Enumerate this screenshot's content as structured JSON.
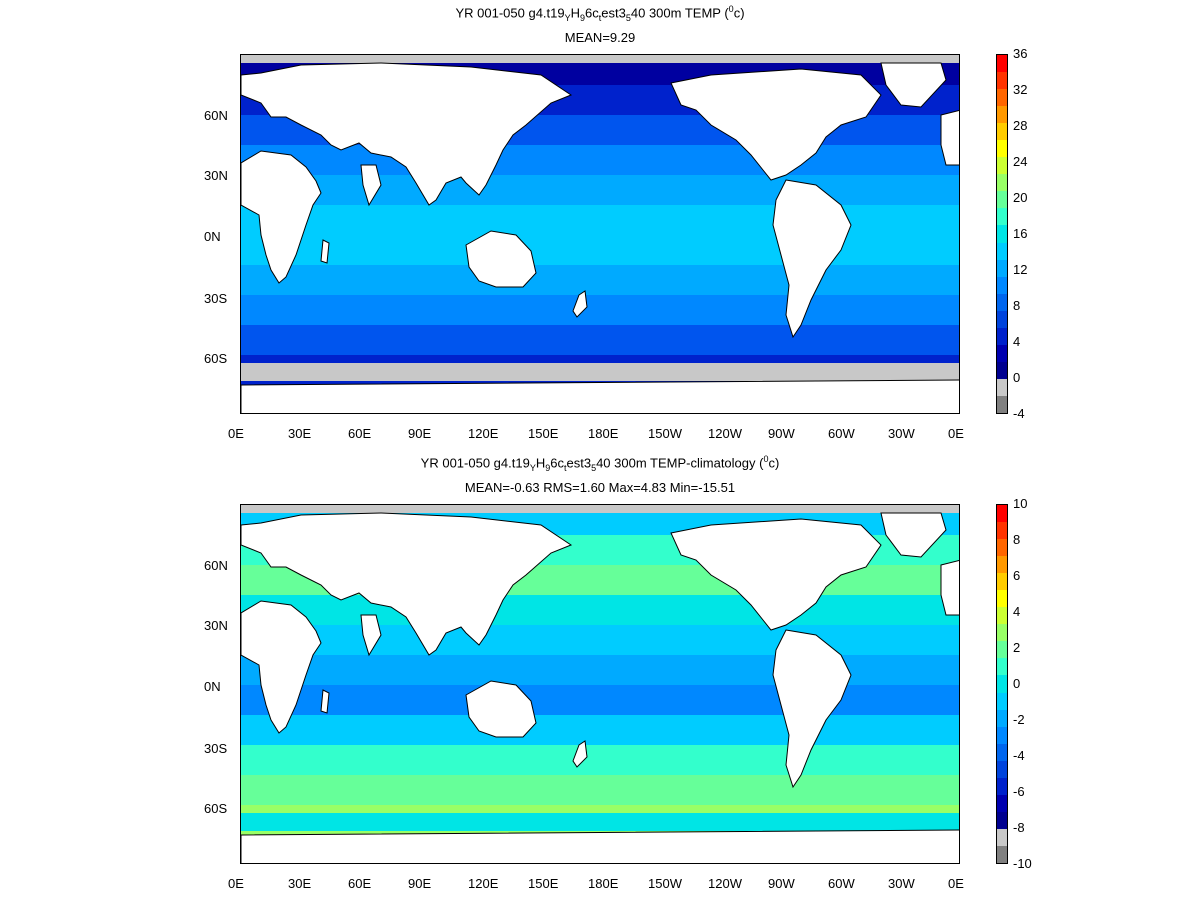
{
  "panels": [
    {
      "id": "temp",
      "title_parts": [
        "YR 001-050 g4.t19",
        "Y",
        "H",
        "9",
        "6c",
        "t",
        "est3",
        "5",
        "40 300m TEMP (",
        "0",
        "c)"
      ],
      "stats": "MEAN=9.29",
      "colorbar": {
        "ticks": [
          "36",
          "32",
          "28",
          "24",
          "20",
          "16",
          "12",
          "8",
          "4",
          "0",
          "-4"
        ],
        "colors": [
          "#ff0000",
          "#ff3300",
          "#ff6600",
          "#ff9900",
          "#ffcc00",
          "#ffff00",
          "#ccff33",
          "#99ff66",
          "#66ff99",
          "#33ffcc",
          "#00e5e5",
          "#00ccff",
          "#00aaff",
          "#0088ff",
          "#0066ee",
          "#0044dd",
          "#0022cc",
          "#0000b0",
          "#000090",
          "#c8c8c8",
          "#808080"
        ]
      },
      "ocean_bands": [
        "#0000a0",
        "#0022cc",
        "#0055ee",
        "#0088ff",
        "#00aaff",
        "#00ccff",
        "#00ccff",
        "#00aaff",
        "#0088ff",
        "#0055ee",
        "#0022cc",
        "#000090"
      ]
    },
    {
      "id": "anom",
      "title_parts": [
        "YR 001-050 g4.t19",
        "Y",
        "H",
        "9",
        "6c",
        "t",
        "est3",
        "5",
        "40 300m TEMP-climatology (",
        "0",
        "c)"
      ],
      "stats": "MEAN=-0.63   RMS=1.60   Max=4.83   Min=-15.51",
      "colorbar": {
        "ticks": [
          "10",
          "8",
          "6",
          "4",
          "2",
          "0",
          "-2",
          "-4",
          "-6",
          "-8",
          "-10"
        ],
        "colors": [
          "#ff0000",
          "#ff3300",
          "#ff6600",
          "#ff9900",
          "#ffcc00",
          "#ffff00",
          "#ccff33",
          "#99ff66",
          "#66ff99",
          "#33ffcc",
          "#00e5e5",
          "#00ccff",
          "#00aaff",
          "#0088ff",
          "#0066ee",
          "#0044dd",
          "#0022cc",
          "#0000b0",
          "#000090",
          "#c8c8c8",
          "#808080"
        ]
      },
      "ocean_bands": [
        "#00ccff",
        "#33ffcc",
        "#66ff99",
        "#00e5e5",
        "#00ccff",
        "#00aaff",
        "#0088ff",
        "#00ccff",
        "#33ffcc",
        "#66ff99",
        "#99ff66",
        "#00e5e5"
      ]
    }
  ],
  "axes": {
    "lat_labels": [
      "60N",
      "30N",
      "0N",
      "30S",
      "60S"
    ],
    "lon_labels": [
      "0E",
      "30E",
      "60E",
      "90E",
      "120E",
      "150E",
      "180E",
      "150W",
      "120W",
      "90W",
      "60W",
      "30W",
      "0E"
    ]
  },
  "map_colors": {
    "land": "#ffffff",
    "coast": "#000000",
    "ice": "#c8c8c8"
  }
}
